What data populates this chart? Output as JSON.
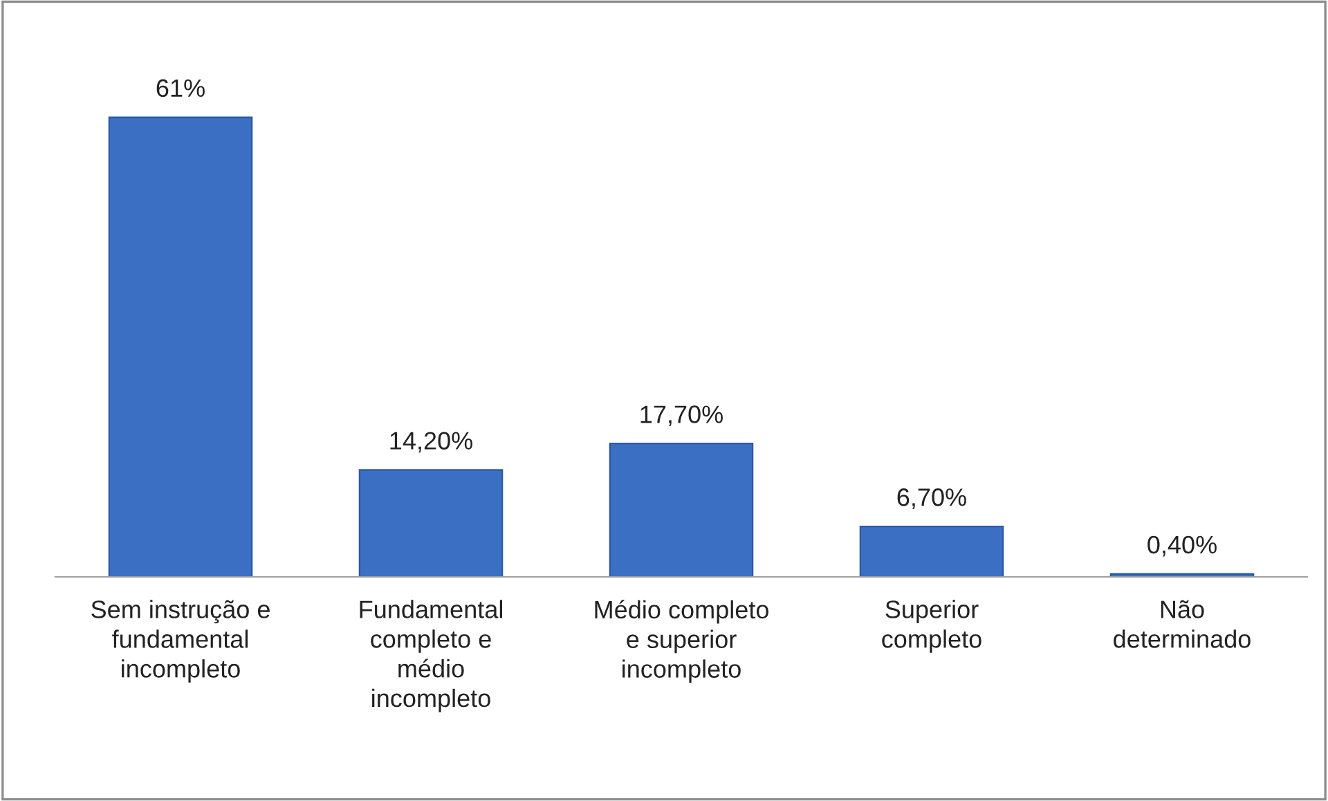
{
  "chart_data": {
    "type": "bar",
    "categories": [
      "Sem instrução e\nfundamental\nincompleto",
      "Fundamental\ncompleto e\nmédio\nincompleto",
      "Médio completo\ne superior\nincompleto",
      "Superior\ncompleto",
      "Não\ndeterminado"
    ],
    "values": [
      61,
      14.2,
      17.7,
      6.7,
      0.4
    ],
    "value_labels": [
      "61%",
      "14,20%",
      "17,70%",
      "6,70%",
      "0,40%"
    ],
    "color": "#3a6fc4",
    "grid": false,
    "legend": false
  }
}
